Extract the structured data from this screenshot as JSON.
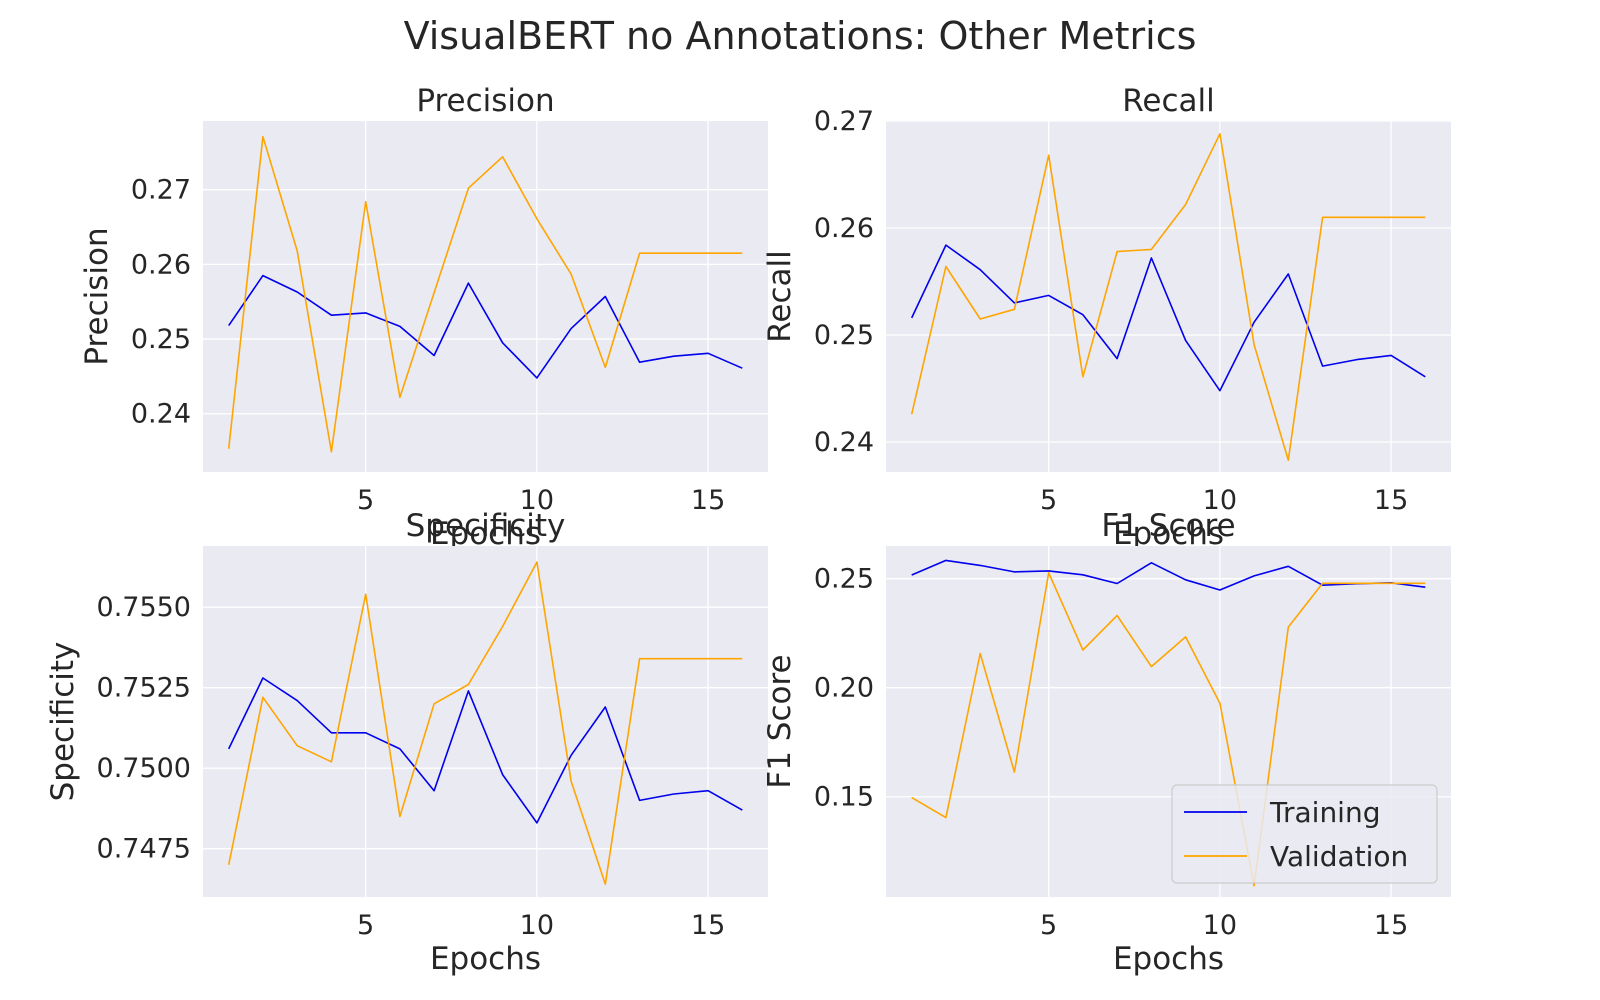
{
  "figure": {
    "title": "VisualBERT no Annotations: Other Metrics"
  },
  "colors": {
    "training": "#0000ee",
    "validation": "#ffa500",
    "plot_bg": "#eaeaf2",
    "grid": "#ffffff"
  },
  "chart_data": [
    {
      "type": "line",
      "title": "Precision",
      "xlabel": "Epochs",
      "ylabel": "Precision",
      "xlim": [
        0.25,
        16.75
      ],
      "ylim": [
        0.2322,
        0.2792
      ],
      "xticks": [
        5,
        10,
        15
      ],
      "yticks": [
        0.24,
        0.25,
        0.26,
        0.27
      ],
      "ytick_labels": [
        "0.24",
        "0.25",
        "0.26",
        "0.27"
      ],
      "grid": true,
      "x": [
        1,
        2,
        3,
        4,
        5,
        6,
        7,
        8,
        9,
        10,
        11,
        12,
        13,
        14,
        15,
        16
      ],
      "series": [
        {
          "name": "Training",
          "color": "#0000ee",
          "values": [
            0.2518,
            0.2585,
            0.2563,
            0.2532,
            0.2535,
            0.2517,
            0.2478,
            0.2575,
            0.2495,
            0.2448,
            0.2514,
            0.2557,
            0.2469,
            0.2477,
            0.2481,
            0.2461
          ]
        },
        {
          "name": "Validation",
          "color": "#ffa500",
          "values": [
            0.2353,
            0.2771,
            0.2618,
            0.2349,
            0.2684,
            0.2422,
            0.2562,
            0.2702,
            0.2744,
            0.2661,
            0.2587,
            0.2462,
            0.2615,
            0.2615,
            0.2615,
            0.2615
          ]
        }
      ]
    },
    {
      "type": "line",
      "title": "Recall",
      "xlabel": "Epochs",
      "ylabel": "Recall",
      "xlim": [
        0.25,
        16.75
      ],
      "ylim": [
        0.2372,
        0.27
      ],
      "xticks": [
        5,
        10,
        15
      ],
      "yticks": [
        0.24,
        0.25,
        0.26,
        0.27
      ],
      "ytick_labels": [
        "0.24",
        "0.25",
        "0.26",
        "0.27"
      ],
      "grid": true,
      "x": [
        1,
        2,
        3,
        4,
        5,
        6,
        7,
        8,
        9,
        10,
        11,
        12,
        13,
        14,
        15,
        16
      ],
      "series": [
        {
          "name": "Training",
          "color": "#0000ee",
          "values": [
            0.2516,
            0.2584,
            0.2561,
            0.253,
            0.2537,
            0.2519,
            0.2478,
            0.2572,
            0.2495,
            0.2448,
            0.2512,
            0.2557,
            0.2471,
            0.2477,
            0.2481,
            0.2461
          ]
        },
        {
          "name": "Validation",
          "color": "#ffa500",
          "values": [
            0.2426,
            0.2564,
            0.2515,
            0.2524,
            0.2668,
            0.2461,
            0.2578,
            0.258,
            0.2622,
            0.2688,
            0.2491,
            0.2383,
            0.261,
            0.261,
            0.261,
            0.261
          ]
        }
      ]
    },
    {
      "type": "line",
      "title": "Specificity",
      "xlabel": "Epochs",
      "ylabel": "Specificity",
      "xlim": [
        0.25,
        16.75
      ],
      "ylim": [
        0.746,
        0.7569
      ],
      "xticks": [
        5,
        10,
        15
      ],
      "yticks": [
        0.7475,
        0.75,
        0.7525,
        0.755
      ],
      "ytick_labels": [
        "0.7475",
        "0.7500",
        "0.7525",
        "0.7550"
      ],
      "grid": true,
      "x": [
        1,
        2,
        3,
        4,
        5,
        6,
        7,
        8,
        9,
        10,
        11,
        12,
        13,
        14,
        15,
        16
      ],
      "series": [
        {
          "name": "Training",
          "color": "#0000ee",
          "values": [
            0.7506,
            0.7528,
            0.7521,
            0.7511,
            0.7511,
            0.7506,
            0.7493,
            0.7524,
            0.7498,
            0.7483,
            0.7504,
            0.7519,
            0.749,
            0.7492,
            0.7493,
            0.7487
          ]
        },
        {
          "name": "Validation",
          "color": "#ffa500",
          "values": [
            0.747,
            0.7522,
            0.7507,
            0.7502,
            0.7554,
            0.7485,
            0.752,
            0.7526,
            0.7544,
            0.7564,
            0.7496,
            0.7464,
            0.7534,
            0.7534,
            0.7534,
            0.7534
          ]
        }
      ]
    },
    {
      "type": "line",
      "title": "F1 Score",
      "xlabel": "Epochs",
      "ylabel": "F1 Score",
      "xlim": [
        0.25,
        16.75
      ],
      "ylim": [
        0.104,
        0.265
      ],
      "xticks": [
        5,
        10,
        15
      ],
      "yticks": [
        0.15,
        0.2,
        0.25
      ],
      "ytick_labels": [
        "0.15",
        "0.20",
        "0.25"
      ],
      "grid": true,
      "legend": "lower-right",
      "x": [
        1,
        2,
        3,
        4,
        5,
        6,
        7,
        8,
        9,
        10,
        11,
        12,
        13,
        14,
        15,
        16
      ],
      "series": [
        {
          "name": "Training",
          "color": "#0000ee",
          "values": [
            0.2517,
            0.2584,
            0.2561,
            0.2531,
            0.2536,
            0.2518,
            0.2478,
            0.2573,
            0.2495,
            0.2448,
            0.2513,
            0.2557,
            0.247,
            0.2477,
            0.2481,
            0.2461
          ]
        },
        {
          "name": "Validation",
          "color": "#ffa500",
          "values": [
            0.1496,
            0.1404,
            0.2157,
            0.1613,
            0.2527,
            0.2173,
            0.2331,
            0.2097,
            0.2233,
            0.1929,
            0.1092,
            0.2278,
            0.2479,
            0.2479,
            0.2479,
            0.2479
          ]
        }
      ]
    }
  ]
}
